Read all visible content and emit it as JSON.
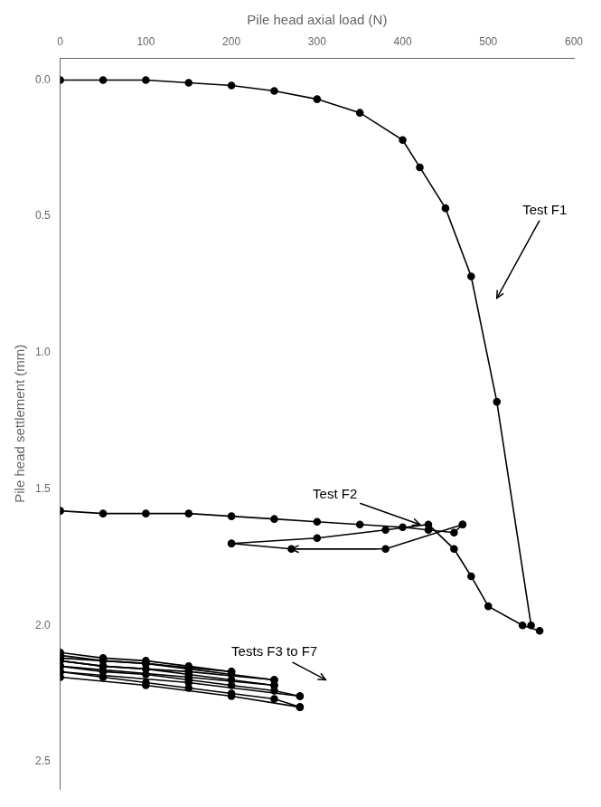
{
  "chart_data": {
    "type": "line",
    "xlabel": "Pile head axial load (N)",
    "ylabel": "Pile head settlement (mm)",
    "xlim": [
      0,
      600
    ],
    "ylim": [
      2.6,
      -0.08
    ],
    "xticks": [
      0,
      100,
      200,
      300,
      400,
      500,
      600
    ],
    "yticks": [
      {
        "value": 0.0,
        "label": "0.0"
      },
      0.5,
      {
        "value": 1.0,
        "label": "1.0"
      },
      1.5,
      {
        "value": 2.0,
        "label": "2.0"
      },
      2.5
    ],
    "grid": false,
    "series": [
      {
        "color": "#000000",
        "marker": "circle",
        "line_style": "solid",
        "x": [
          0,
          50,
          100,
          150,
          200,
          250,
          300,
          350,
          400,
          420,
          450,
          480,
          510,
          550
        ],
        "values": [
          0.0,
          0.0,
          0.0,
          0.01,
          0.02,
          0.04,
          0.07,
          0.12,
          0.22,
          0.32,
          0.47,
          0.72,
          1.18,
          2.0
        ]
      },
      {
        "color": "#000000",
        "marker": "circle",
        "line_style": "solid",
        "x": [
          0,
          50,
          100,
          150,
          200,
          250,
          300,
          350,
          400,
          430,
          460,
          470
        ],
        "values": [
          1.58,
          1.59,
          1.59,
          1.59,
          1.6,
          1.61,
          1.62,
          1.63,
          1.64,
          1.65,
          1.66,
          1.63
        ]
      },
      {
        "color": "#000000",
        "marker": "circle",
        "line_style": "solid",
        "x": [
          470,
          380,
          270,
          200
        ],
        "values": [
          1.63,
          1.72,
          1.72,
          1.7
        ]
      },
      {
        "color": "#000000",
        "marker": "circle",
        "line_style": "solid",
        "x": [
          200,
          300,
          380,
          430,
          460,
          480,
          500,
          540,
          560
        ],
        "values": [
          1.7,
          1.68,
          1.65,
          1.63,
          1.72,
          1.82,
          1.93,
          2.0,
          2.02
        ]
      },
      {
        "color": "#000000",
        "marker": "circle",
        "line_style": "solid",
        "x": [
          0,
          50,
          100,
          150,
          200
        ],
        "values": [
          2.1,
          2.12,
          2.13,
          2.15,
          2.17
        ]
      },
      {
        "color": "#000000",
        "marker": "circle",
        "line_style": "solid",
        "x": [
          200,
          100,
          0
        ],
        "values": [
          2.17,
          2.14,
          2.12
        ]
      },
      {
        "color": "#000000",
        "marker": "circle",
        "line_style": "solid",
        "x": [
          0,
          50,
          100,
          150,
          200,
          250
        ],
        "values": [
          2.11,
          2.13,
          2.14,
          2.16,
          2.18,
          2.2
        ]
      },
      {
        "color": "#000000",
        "marker": "circle",
        "line_style": "solid",
        "x": [
          250,
          150,
          50,
          0
        ],
        "values": [
          2.2,
          2.17,
          2.15,
          2.13
        ]
      },
      {
        "color": "#000000",
        "marker": "circle",
        "line_style": "solid",
        "x": [
          0,
          50,
          100,
          150,
          200,
          250
        ],
        "values": [
          2.13,
          2.15,
          2.16,
          2.18,
          2.2,
          2.22
        ]
      },
      {
        "color": "#000000",
        "marker": "circle",
        "line_style": "solid",
        "x": [
          250,
          150,
          0
        ],
        "values": [
          2.22,
          2.19,
          2.15
        ]
      },
      {
        "color": "#000000",
        "marker": "circle",
        "line_style": "solid",
        "x": [
          0,
          50,
          100,
          150,
          200,
          250,
          280
        ],
        "values": [
          2.15,
          2.17,
          2.18,
          2.2,
          2.22,
          2.24,
          2.26
        ]
      },
      {
        "color": "#000000",
        "marker": "circle",
        "line_style": "solid",
        "x": [
          280,
          150,
          0
        ],
        "values": [
          2.26,
          2.21,
          2.17
        ]
      },
      {
        "color": "#000000",
        "marker": "circle",
        "line_style": "solid",
        "x": [
          0,
          50,
          100,
          150,
          200,
          250,
          280
        ],
        "values": [
          2.17,
          2.19,
          2.21,
          2.23,
          2.25,
          2.27,
          2.3
        ]
      },
      {
        "color": "#000000",
        "marker": "circle",
        "line_style": "solid",
        "x": [
          280,
          200,
          100,
          0
        ],
        "values": [
          2.3,
          2.26,
          2.22,
          2.19
        ]
      }
    ],
    "annotations": [
      {
        "text": "Test F1",
        "xy": [
          510,
          0.8
        ],
        "xytext": [
          540,
          0.48
        ]
      },
      {
        "text": "Test F2",
        "xy": [
          420,
          1.63
        ],
        "xytext": [
          295,
          1.52
        ]
      },
      {
        "xy": [
          270,
          1.72
        ],
        "xytext": [
          370,
          1.72
        ]
      },
      {
        "text": "Tests F3 to F7",
        "xy": [
          310,
          2.2
        ],
        "xytext": [
          200,
          2.1
        ]
      }
    ]
  }
}
